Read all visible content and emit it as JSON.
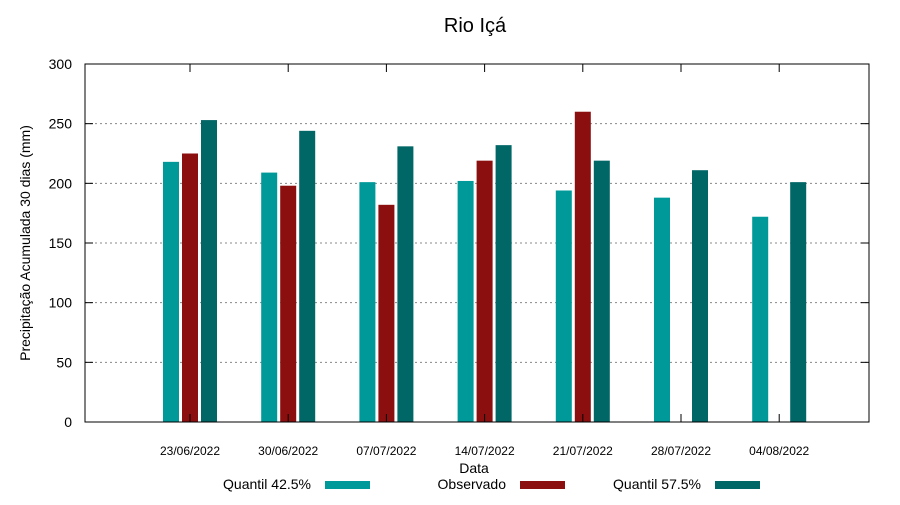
{
  "chart_data": {
    "type": "bar",
    "title": "Rio Içá",
    "xlabel": "Data",
    "ylabel": "Precipitação Acumulada 30 dias (mm)",
    "ylim": [
      0,
      300
    ],
    "yticks": [
      0,
      50,
      100,
      150,
      200,
      250,
      300
    ],
    "grid": true,
    "legend_position": "bottom",
    "categories": [
      "23/06/2022",
      "30/06/2022",
      "07/07/2022",
      "14/07/2022",
      "21/07/2022",
      "28/07/2022",
      "04/08/2022"
    ],
    "series": [
      {
        "name": "Quantil 42.5%",
        "color": "#009999",
        "values": [
          218,
          209,
          201,
          202,
          194,
          188,
          172
        ]
      },
      {
        "name": "Observado",
        "color": "#8b0f0f",
        "values": [
          225,
          198,
          182,
          219,
          260,
          null,
          null
        ]
      },
      {
        "name": "Quantil 57.5%",
        "color": "#006666",
        "values": [
          253,
          244,
          231,
          232,
          219,
          211,
          201
        ]
      }
    ]
  }
}
